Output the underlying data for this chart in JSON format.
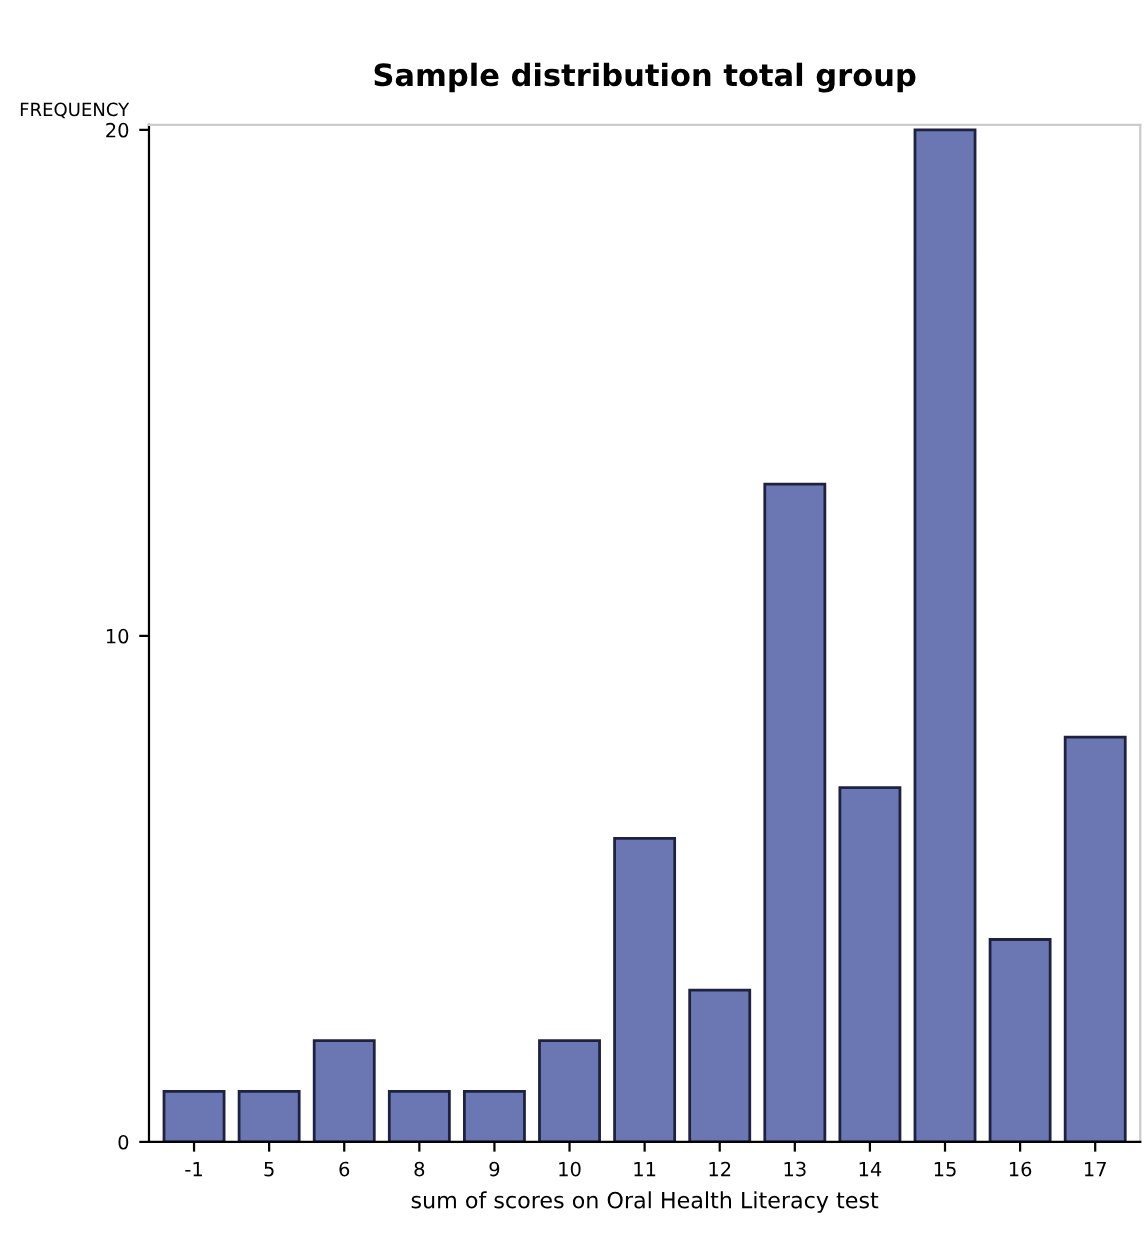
{
  "chart_data": {
    "type": "bar",
    "title": "Sample distribution total group",
    "ylabel": "FREQUENCY",
    "xlabel": "sum of scores on Oral Health Literacy test",
    "categories": [
      "-1",
      "5",
      "6",
      "8",
      "9",
      "10",
      "11",
      "12",
      "13",
      "14",
      "15",
      "16",
      "17"
    ],
    "values": [
      1,
      1,
      2,
      1,
      1,
      2,
      6,
      3,
      13,
      7,
      20,
      4,
      8
    ],
    "color": "#6a77b3",
    "ylim": [
      0,
      20.1
    ],
    "yticks": [
      0,
      10,
      20
    ],
    "grid": false,
    "legend": false
  }
}
